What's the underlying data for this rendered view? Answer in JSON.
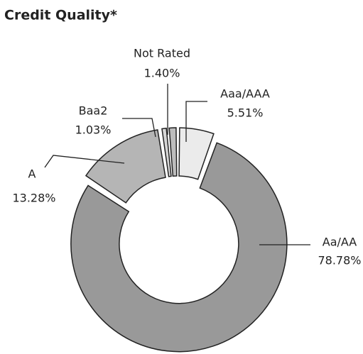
{
  "chart_data": {
    "type": "donut",
    "title": "Credit Quality*",
    "categories": [
      "Aaa/AAA",
      "Aa/AA",
      "A",
      "Baa2",
      "Not Rated"
    ],
    "values": [
      5.51,
      78.78,
      13.28,
      1.03,
      1.4
    ],
    "value_labels": [
      "5.51%",
      "78.78%",
      "13.28%",
      "1.03%",
      "1.40%"
    ],
    "colors": [
      "#ebebeb",
      "#999999",
      "#b5b5b5",
      "#d6d6d6",
      "#bdbdbd"
    ]
  }
}
